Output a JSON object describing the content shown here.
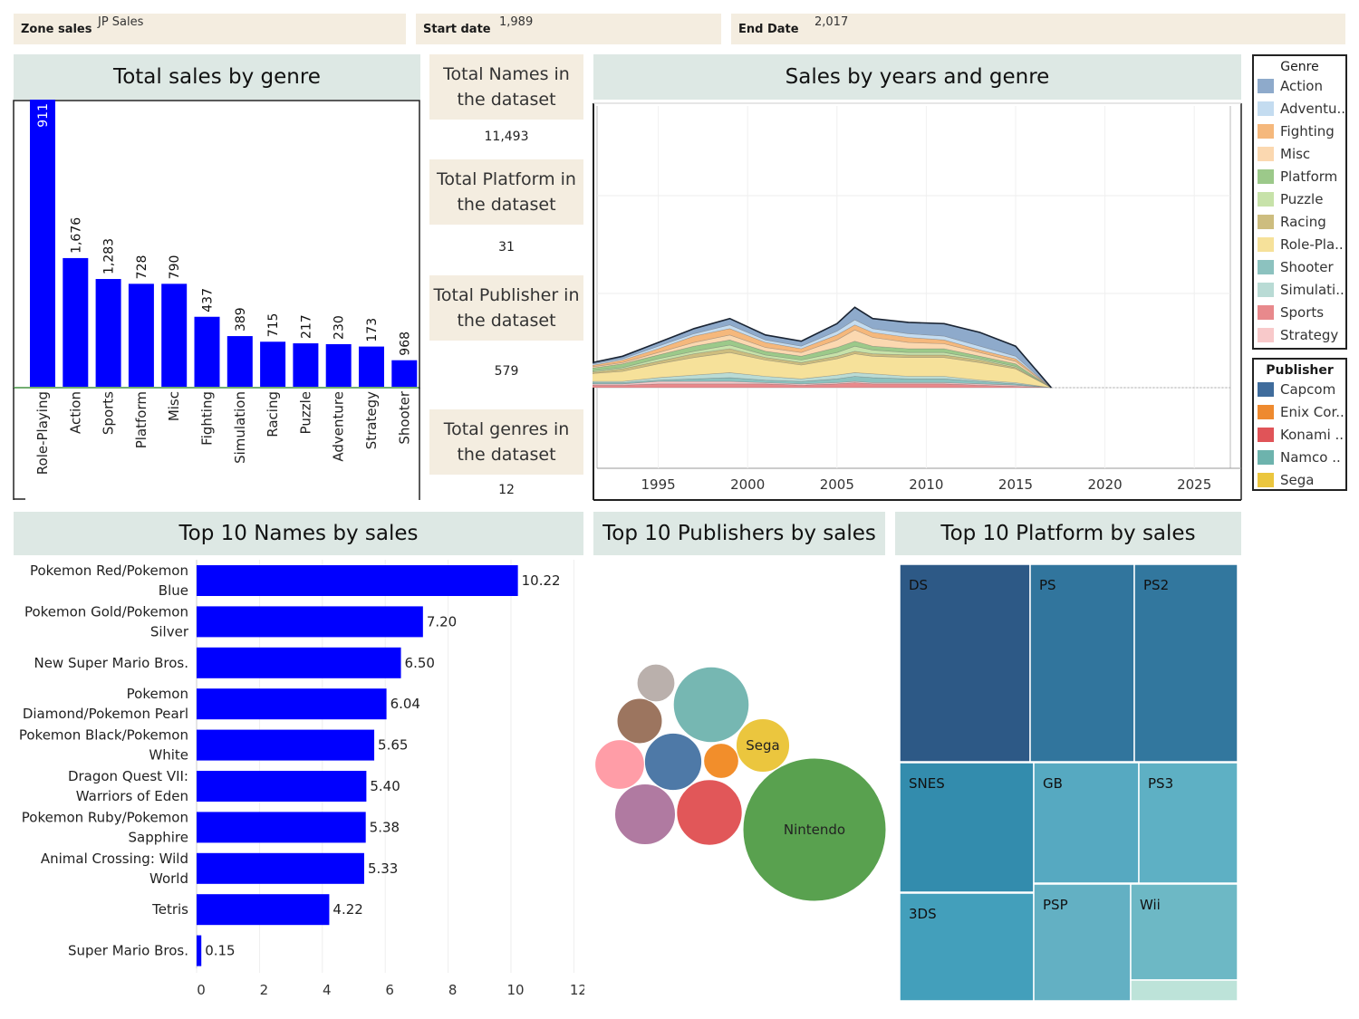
{
  "filters": [
    {
      "label": "Zone sales",
      "value": "JP Sales"
    },
    {
      "label": "Start date",
      "value": "1,989"
    },
    {
      "label": "End Date",
      "value": "2,017"
    }
  ],
  "titles": {
    "genre": "Total sales by genre",
    "years": "Sales by years and genre",
    "names": "Top 10 Names by sales",
    "publishers": "Top 10 Publishers by sales",
    "platforms": "Top 10 Platform by sales"
  },
  "kpis": [
    {
      "title": "Total Names in the dataset",
      "value": "11,493"
    },
    {
      "title": "Total Platform in the dataset",
      "value": "31"
    },
    {
      "title": "Total Publisher in the dataset",
      "value": "579"
    },
    {
      "title": "Total genres in the dataset",
      "value": "12"
    }
  ],
  "legend_genre": {
    "title": "Genre",
    "items": [
      {
        "label": "Action",
        "color": "#8eaacb"
      },
      {
        "label": "Adventu..",
        "color": "#c4dcf0"
      },
      {
        "label": "Fighting",
        "color": "#f5b87c"
      },
      {
        "label": "Misc",
        "color": "#fbd8b0"
      },
      {
        "label": "Platform",
        "color": "#9cc98a"
      },
      {
        "label": "Puzzle",
        "color": "#c7e2a9"
      },
      {
        "label": "Racing",
        "color": "#cdbd7f"
      },
      {
        "label": "Role-Pla..",
        "color": "#f6e19a"
      },
      {
        "label": "Shooter",
        "color": "#8cc2bf"
      },
      {
        "label": "Simulati..",
        "color": "#b9dbd5"
      },
      {
        "label": "Sports",
        "color": "#e8898c"
      },
      {
        "label": "Strategy",
        "color": "#f8c9ca"
      }
    ]
  },
  "legend_publisher": {
    "title": "Publisher",
    "items": [
      {
        "label": "Capcom",
        "color": "#3f6c9c"
      },
      {
        "label": "Enix Cor..",
        "color": "#ee8a2f"
      },
      {
        "label": "Konami ..",
        "color": "#e05458"
      },
      {
        "label": "Namco ..",
        "color": "#6db3ad"
      },
      {
        "label": "Sega",
        "color": "#ebc63e"
      }
    ]
  },
  "chart_data": [
    {
      "type": "bar",
      "title": "Total sales by genre",
      "categories": [
        "Role-Playing",
        "Action",
        "Sports",
        "Platform",
        "Misc",
        "Fighting",
        "Simulation",
        "Racing",
        "Puzzle",
        "Adventure",
        "Strategy",
        "Shooter"
      ],
      "values": [
        357,
        160,
        134,
        128,
        128,
        87,
        63,
        56,
        54,
        53,
        50,
        33
      ],
      "labels": [
        "911",
        "1,676",
        "1,283",
        "728",
        "790",
        "437",
        "389",
        "715",
        "217",
        "230",
        "173",
        "968"
      ],
      "color": "#0000ff"
    },
    {
      "type": "area",
      "title": "Sales by years and genre",
      "x_ticks": [
        "1995",
        "2000",
        "2005",
        "2010",
        "2015",
        "2020",
        "2025"
      ],
      "xlim": [
        1989,
        2028
      ],
      "ylim": [
        0,
        150
      ],
      "stacked": true,
      "years": [
        1989,
        1991,
        1993,
        1995,
        1997,
        1999,
        2001,
        2003,
        2005,
        2006,
        2007,
        2009,
        2011,
        2013,
        2015,
        2017
      ],
      "series": [
        {
          "name": "Sports",
          "color": "#e8898c",
          "values": [
            2,
            2,
            2,
            3,
            3,
            3,
            3,
            2,
            3,
            4,
            3,
            3,
            3,
            2,
            1,
            0
          ]
        },
        {
          "name": "Strategy",
          "color": "#f8c9ca",
          "values": [
            1,
            1,
            1,
            2,
            2,
            2,
            1,
            1,
            1,
            1,
            1,
            1,
            1,
            1,
            1,
            0
          ]
        },
        {
          "name": "Shooter",
          "color": "#8cc2bf",
          "values": [
            1,
            1,
            1,
            1,
            2,
            3,
            2,
            2,
            3,
            4,
            4,
            3,
            3,
            2,
            1,
            0
          ]
        },
        {
          "name": "Simulation",
          "color": "#b9dbd5",
          "values": [
            1,
            1,
            1,
            2,
            3,
            4,
            3,
            2,
            3,
            3,
            3,
            2,
            2,
            1,
            1,
            0
          ]
        },
        {
          "name": "Role-Playing",
          "color": "#f6e19a",
          "values": [
            8,
            6,
            8,
            11,
            14,
            16,
            13,
            11,
            13,
            15,
            14,
            15,
            15,
            14,
            11,
            0
          ]
        },
        {
          "name": "Racing",
          "color": "#cdbd7f",
          "values": [
            2,
            1,
            2,
            2,
            3,
            3,
            2,
            2,
            2,
            2,
            2,
            2,
            2,
            2,
            1,
            0
          ]
        },
        {
          "name": "Puzzle",
          "color": "#c7e2a9",
          "values": [
            1,
            1,
            1,
            2,
            2,
            3,
            2,
            2,
            3,
            4,
            3,
            2,
            2,
            1,
            1,
            0
          ]
        },
        {
          "name": "Platform",
          "color": "#9cc98a",
          "values": [
            2,
            2,
            3,
            3,
            4,
            4,
            3,
            3,
            4,
            4,
            3,
            3,
            3,
            2,
            2,
            0
          ]
        },
        {
          "name": "Misc",
          "color": "#fbd8b0",
          "values": [
            1,
            1,
            1,
            2,
            3,
            4,
            3,
            3,
            6,
            9,
            7,
            5,
            4,
            3,
            2,
            0
          ]
        },
        {
          "name": "Fighting",
          "color": "#f5b87c",
          "values": [
            1,
            1,
            2,
            3,
            5,
            5,
            4,
            3,
            4,
            4,
            4,
            4,
            3,
            2,
            2,
            0
          ]
        },
        {
          "name": "Adventure",
          "color": "#c4dcf0",
          "values": [
            1,
            1,
            1,
            2,
            2,
            3,
            2,
            2,
            3,
            4,
            3,
            3,
            3,
            3,
            2,
            0
          ]
        },
        {
          "name": "Action",
          "color": "#8eaacb",
          "values": [
            2,
            1,
            2,
            3,
            4,
            5,
            4,
            4,
            6,
            10,
            8,
            9,
            10,
            11,
            8,
            0
          ]
        }
      ]
    },
    {
      "type": "bar",
      "title": "Top 10 Names by sales",
      "orientation": "horizontal",
      "categories": [
        "Pokemon Red/Pokemon Blue",
        "Pokemon Gold/Pokemon Silver",
        "New Super Mario Bros.",
        "Pokemon Diamond/Pokemon Pearl",
        "Pokemon Black/Pokemon White",
        "Dragon Quest VII: Warriors of Eden",
        "Pokemon Ruby/Pokemon Sapphire",
        "Animal Crossing: Wild World",
        "Tetris",
        "Super Mario Bros."
      ],
      "values": [
        10.22,
        7.2,
        6.5,
        6.04,
        5.65,
        5.4,
        5.38,
        5.33,
        4.22,
        0.15
      ],
      "labels": [
        "10.22",
        "7.20",
        "6.50",
        "6.04",
        "5.65",
        "5.40",
        "5.38",
        "5.33",
        "4.22",
        "0.15"
      ],
      "x_ticks": [
        "0",
        "2",
        "4",
        "6",
        "8",
        "10",
        "12"
      ],
      "xlim": [
        0,
        12
      ],
      "color": "#0000ff"
    },
    {
      "type": "bubble",
      "title": "Top 10 Publishers by sales",
      "bubbles": [
        {
          "label": "Nintendo",
          "color": "#59a14f",
          "size": 100
        },
        {
          "label": "Sega",
          "color": "#ebc63e",
          "size": 14
        },
        {
          "label": "",
          "color": "#76b7b2",
          "size": 28
        },
        {
          "label": "",
          "color": "#e15759",
          "size": 21
        },
        {
          "label": "",
          "color": "#b07aa1",
          "size": 18
        },
        {
          "label": "",
          "color": "#4e79a7",
          "size": 16
        },
        {
          "label": "",
          "color": "#ff9da7",
          "size": 12
        },
        {
          "label": "",
          "color": "#9c755f",
          "size": 10
        },
        {
          "label": "",
          "color": "#bab0ac",
          "size": 7
        },
        {
          "label": "",
          "color": "#f28e2b",
          "size": 6
        }
      ]
    },
    {
      "type": "treemap",
      "title": "Top 10 Platform by sales",
      "cells": [
        {
          "label": "DS",
          "color": "#2d5986"
        },
        {
          "label": "PS",
          "color": "#31759d"
        },
        {
          "label": "PS2",
          "color": "#32779e"
        },
        {
          "label": "SNES",
          "color": "#338cad"
        },
        {
          "label": "GB",
          "color": "#56a9c1"
        },
        {
          "label": "PS3",
          "color": "#5eb0c4"
        },
        {
          "label": "3DS",
          "color": "#439fbb"
        },
        {
          "label": "PSP",
          "color": "#63b0c3"
        },
        {
          "label": "Wii",
          "color": "#6db8c5"
        },
        {
          "label": "",
          "color": "#bde3d9"
        }
      ]
    }
  ]
}
